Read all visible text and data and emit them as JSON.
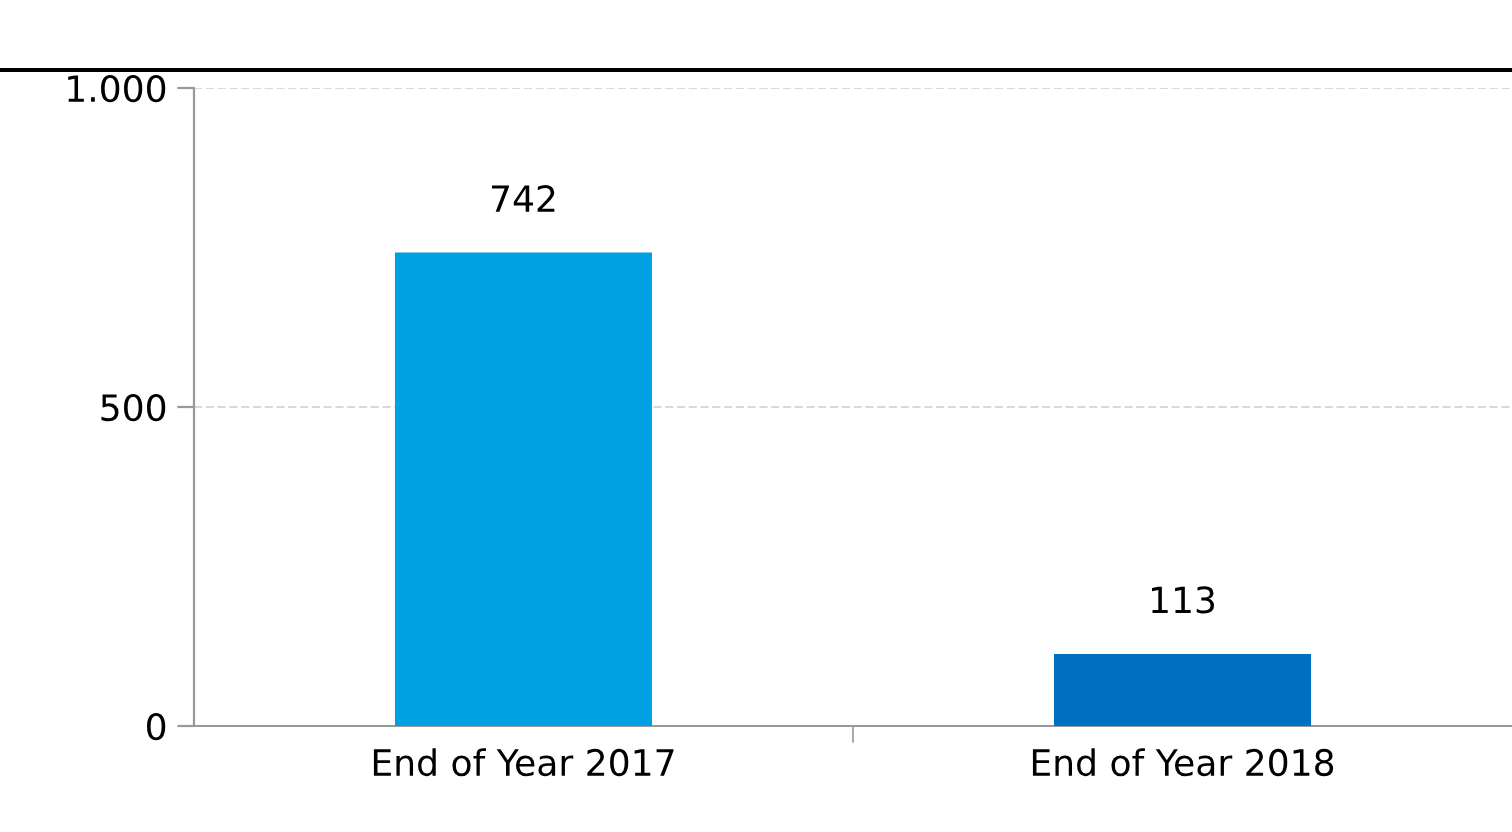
{
  "chart_data": {
    "type": "bar",
    "categories": [
      "End of Year 2017",
      "End of Year 2018"
    ],
    "values": [
      742,
      113
    ],
    "colors": [
      "#00a0e3",
      "#0070c0"
    ],
    "ylim": [
      0,
      1000
    ],
    "yticks": [
      0,
      500,
      {
        "value": 1000,
        "label": "1.000"
      }
    ],
    "grid": "y",
    "data_labels": true
  }
}
